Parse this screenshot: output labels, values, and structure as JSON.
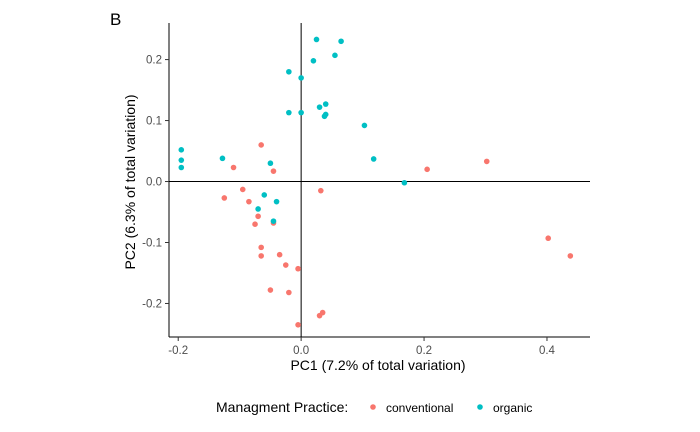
{
  "panel_tag": "B",
  "chart_data": {
    "type": "scatter",
    "title": "",
    "xlabel": "PC1 (7.2% of total variation)",
    "ylabel": "PC2 (6.3% of total variation)",
    "xlim": [
      -0.215,
      0.47
    ],
    "ylim": [
      -0.255,
      0.26
    ],
    "xticks": [
      -0.2,
      0.0,
      0.2,
      0.4
    ],
    "xtick_labels": [
      "-0.2",
      "0.0",
      "0.2",
      "0.4"
    ],
    "yticks": [
      -0.2,
      -0.1,
      0.0,
      0.1,
      0.2
    ],
    "ytick_labels": [
      "-0.2",
      "-0.1",
      "0.0",
      "0.1",
      "0.2"
    ],
    "grid": false,
    "reference_lines": {
      "x": 0,
      "y": 0
    },
    "legend": {
      "title": "Managment Practice:",
      "position": "bottom"
    },
    "series": [
      {
        "name": "conventional",
        "color": "#F8766D",
        "points": [
          [
            -0.065,
            0.06
          ],
          [
            -0.11,
            0.023
          ],
          [
            -0.045,
            0.017
          ],
          [
            0.302,
            0.033
          ],
          [
            0.205,
            0.02
          ],
          [
            -0.125,
            -0.027
          ],
          [
            -0.095,
            -0.013
          ],
          [
            -0.085,
            -0.033
          ],
          [
            0.032,
            -0.015
          ],
          [
            -0.07,
            -0.057
          ],
          [
            -0.075,
            -0.07
          ],
          [
            -0.045,
            -0.068
          ],
          [
            -0.065,
            -0.108
          ],
          [
            -0.065,
            -0.122
          ],
          [
            -0.035,
            -0.12
          ],
          [
            -0.025,
            -0.137
          ],
          [
            -0.005,
            -0.143
          ],
          [
            -0.05,
            -0.178
          ],
          [
            -0.02,
            -0.182
          ],
          [
            0.035,
            -0.215
          ],
          [
            0.03,
            -0.22
          ],
          [
            -0.005,
            -0.235
          ],
          [
            0.402,
            -0.093
          ],
          [
            0.438,
            -0.122
          ]
        ]
      },
      {
        "name": "organic",
        "color": "#00BFC4",
        "points": [
          [
            0.025,
            0.233
          ],
          [
            0.065,
            0.23
          ],
          [
            0.055,
            0.207
          ],
          [
            0.02,
            0.198
          ],
          [
            -0.02,
            0.18
          ],
          [
            0.0,
            0.17
          ],
          [
            0.04,
            0.127
          ],
          [
            0.03,
            0.122
          ],
          [
            0.04,
            0.11
          ],
          [
            0.038,
            0.107
          ],
          [
            -0.02,
            0.113
          ],
          [
            0.0,
            0.113
          ],
          [
            0.103,
            0.092
          ],
          [
            0.118,
            0.037
          ],
          [
            -0.195,
            0.052
          ],
          [
            -0.195,
            0.035
          ],
          [
            -0.195,
            0.023
          ],
          [
            -0.128,
            0.038
          ],
          [
            -0.05,
            0.03
          ],
          [
            -0.06,
            -0.022
          ],
          [
            -0.04,
            -0.033
          ],
          [
            -0.07,
            -0.045
          ],
          [
            -0.045,
            -0.065
          ],
          [
            0.168,
            -0.002
          ]
        ]
      }
    ]
  }
}
